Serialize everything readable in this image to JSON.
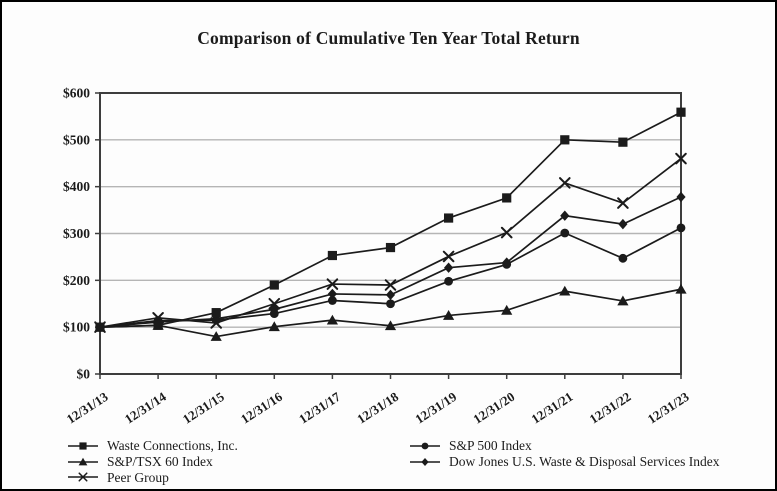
{
  "title": "Comparison of Cumulative Ten Year Total Return",
  "colors": {
    "series": "#1b1b1b",
    "gridline": "#b5b5b5",
    "axis": "#3d3d3d",
    "background": "#fdfdfd",
    "border": "#000000"
  },
  "chart_data": {
    "type": "line",
    "title": "Comparison of Cumulative Ten Year Total Return",
    "xlabel": "",
    "ylabel": "",
    "categories": [
      "12/31/13",
      "12/31/14",
      "12/31/15",
      "12/31/16",
      "12/31/17",
      "12/31/18",
      "12/31/19",
      "12/31/20",
      "12/31/21",
      "12/31/22",
      "12/31/23"
    ],
    "series": [
      {
        "name": "Waste Connections, Inc.",
        "marker": "square",
        "values": [
          100,
          104,
          131,
          190,
          253,
          270,
          333,
          376,
          500,
          495,
          559
        ]
      },
      {
        "name": "S&P 500 Index",
        "marker": "circle",
        "values": [
          100,
          114,
          115,
          129,
          157,
          150,
          198,
          234,
          301,
          247,
          312
        ]
      },
      {
        "name": "S&P/TSX 60 Index",
        "marker": "triangle",
        "values": [
          100,
          104,
          80,
          101,
          115,
          103,
          125,
          136,
          177,
          156,
          181
        ]
      },
      {
        "name": "Dow Jones U.S. Waste & Disposal Services Index",
        "marker": "diamond",
        "values": [
          100,
          111,
          118,
          138,
          171,
          169,
          227,
          238,
          338,
          320,
          378
        ]
      },
      {
        "name": "Peer Group",
        "marker": "x",
        "values": [
          100,
          120,
          109,
          150,
          192,
          190,
          251,
          302,
          408,
          365,
          460
        ]
      }
    ],
    "ylim": [
      0,
      600
    ],
    "ytick_step": 100,
    "ytick_labels": [
      "$0",
      "$100",
      "$200",
      "$300",
      "$400",
      "$500",
      "$600"
    ],
    "grid": "horizontal",
    "legend_position": "bottom-two-columns"
  },
  "legend": {
    "columns": [
      [
        0,
        2,
        4
      ],
      [
        1,
        3
      ]
    ]
  }
}
